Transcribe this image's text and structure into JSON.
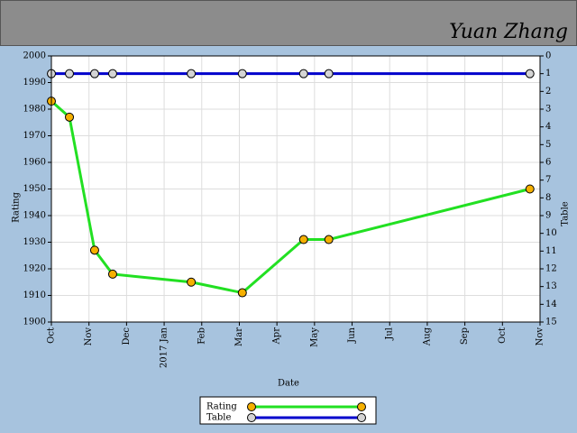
{
  "header": {
    "name": "Yuan Zhang"
  },
  "chart_data": {
    "type": "line",
    "x_label": "Date",
    "y_label": "Rating",
    "y2_label": "Table",
    "x": [
      0,
      0.48,
      1.15,
      1.63,
      3.72,
      5.08,
      6.71,
      7.38,
      12.73
    ],
    "series": [
      {
        "name": "Rating",
        "color": "#22e022",
        "marker_color": "#f5b000",
        "values": [
          1983,
          1977,
          1927,
          1918,
          1915,
          1911,
          1931,
          1931,
          1950
        ]
      },
      {
        "name": "Table",
        "color": "#0000cc",
        "marker_color": "#d4d4d4",
        "axis": "y2",
        "values": [
          1,
          1,
          1,
          1,
          1,
          1,
          1,
          1,
          1
        ]
      }
    ],
    "xlim": [
      0,
      13
    ],
    "xticks": [
      {
        "value": 0,
        "label": "Oct"
      },
      {
        "value": 1,
        "label": "Nov"
      },
      {
        "value": 2,
        "label": "Dec"
      },
      {
        "value": 3,
        "label": "2017 Jan"
      },
      {
        "value": 4,
        "label": "Feb"
      },
      {
        "value": 5,
        "label": "Mar"
      },
      {
        "value": 6,
        "label": "Apr"
      },
      {
        "value": 7,
        "label": "May"
      },
      {
        "value": 8,
        "label": "Jun"
      },
      {
        "value": 9,
        "label": "Jul"
      },
      {
        "value": 10,
        "label": "Aug"
      },
      {
        "value": 11,
        "label": "Sep"
      },
      {
        "value": 12,
        "label": "Oct"
      },
      {
        "value": 13,
        "label": "Nov"
      }
    ],
    "ylim": [
      1900,
      2000
    ],
    "yticks": [
      1900,
      1910,
      1920,
      1930,
      1940,
      1950,
      1960,
      1970,
      1980,
      1990,
      2000
    ],
    "y2lim": [
      15,
      0
    ],
    "y2ticks": [
      0,
      1,
      2,
      3,
      4,
      5,
      6,
      7,
      8,
      9,
      10,
      11,
      12,
      13,
      14,
      15
    ],
    "grid": true
  }
}
